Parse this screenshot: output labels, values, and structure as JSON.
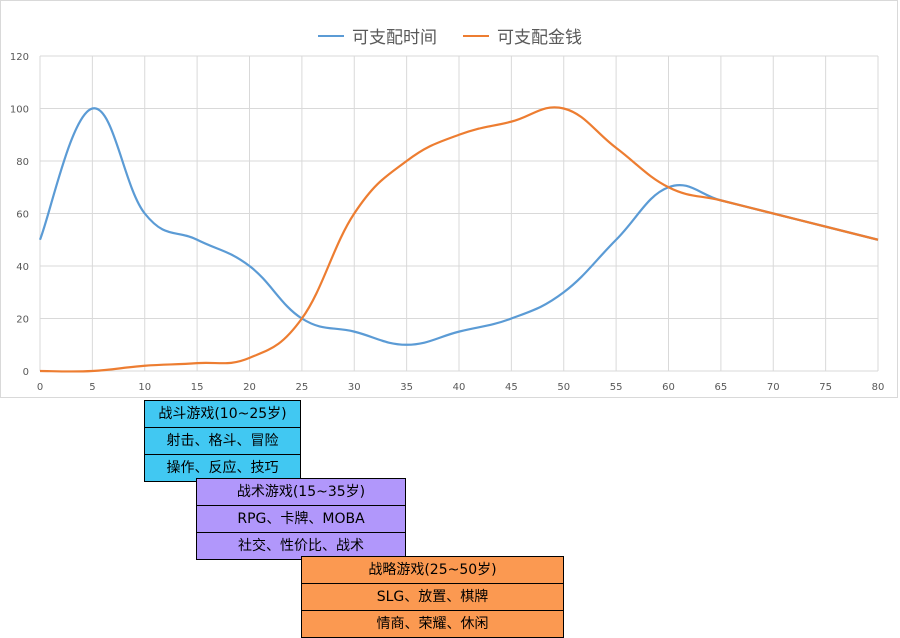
{
  "chart_data": {
    "type": "line",
    "xlim": [
      0,
      80
    ],
    "ylim": [
      0,
      120
    ],
    "x_ticks": [
      0,
      5,
      10,
      15,
      20,
      25,
      30,
      35,
      40,
      45,
      50,
      55,
      60,
      65,
      70,
      75,
      80
    ],
    "y_ticks": [
      0,
      20,
      40,
      60,
      80,
      100,
      120
    ],
    "grid": true,
    "legend_position": "top",
    "smooth": true,
    "series": [
      {
        "name": "可支配时间",
        "color": "#5b9bd5",
        "points": [
          [
            0,
            50
          ],
          [
            5,
            100
          ],
          [
            10,
            60
          ],
          [
            15,
            50
          ],
          [
            20,
            40
          ],
          [
            25,
            20
          ],
          [
            30,
            15
          ],
          [
            35,
            10
          ],
          [
            40,
            15
          ],
          [
            45,
            20
          ],
          [
            50,
            30
          ],
          [
            55,
            50
          ],
          [
            60,
            70
          ],
          [
            65,
            65
          ],
          [
            70,
            60
          ],
          [
            75,
            55
          ],
          [
            80,
            50
          ]
        ]
      },
      {
        "name": "可支配金钱",
        "color": "#ed7d31",
        "points": [
          [
            0,
            0
          ],
          [
            5,
            0
          ],
          [
            10,
            2
          ],
          [
            15,
            3
          ],
          [
            20,
            5
          ],
          [
            25,
            20
          ],
          [
            30,
            60
          ],
          [
            35,
            80
          ],
          [
            40,
            90
          ],
          [
            45,
            95
          ],
          [
            50,
            100
          ],
          [
            55,
            85
          ],
          [
            60,
            70
          ],
          [
            65,
            65
          ],
          [
            70,
            60
          ],
          [
            75,
            55
          ],
          [
            80,
            50
          ]
        ]
      }
    ]
  },
  "groups": {
    "combat": {
      "title": "战斗游戏(10~25岁)",
      "genres": "射击、格斗、冒险",
      "traits": "操作、反应、技巧",
      "color": "#41c8f2",
      "range": [
        10,
        25
      ]
    },
    "tactics": {
      "title": "战术游戏(15~35岁)",
      "genres": "RPG、卡牌、MOBA",
      "traits": "社交、性价比、战术",
      "color": "#b197fb",
      "range": [
        15,
        35
      ]
    },
    "strategy": {
      "title": "战略游戏(25~50岁)",
      "genres": "SLG、放置、棋牌",
      "traits": "情商、荣耀、休闲",
      "color": "#fb9951",
      "range": [
        25,
        50
      ]
    }
  }
}
